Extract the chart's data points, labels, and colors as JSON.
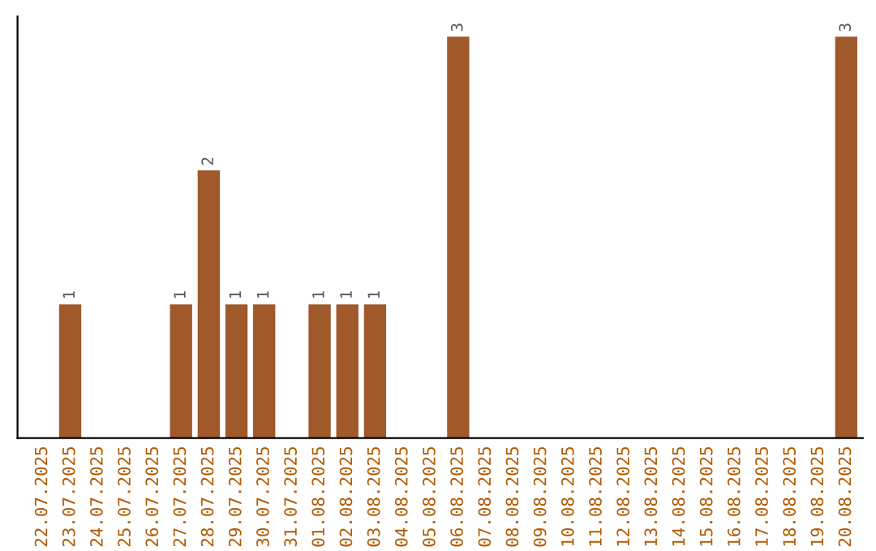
{
  "chart_data": {
    "type": "bar",
    "categories": [
      "22.07.2025",
      "23.07.2025",
      "24.07.2025",
      "25.07.2025",
      "26.07.2025",
      "27.07.2025",
      "28.07.2025",
      "29.07.2025",
      "30.07.2025",
      "31.07.2025",
      "01.08.2025",
      "02.08.2025",
      "03.08.2025",
      "04.08.2025",
      "05.08.2025",
      "06.08.2025",
      "07.08.2025",
      "08.08.2025",
      "09.08.2025",
      "10.08.2025",
      "11.08.2025",
      "12.08.2025",
      "13.08.2025",
      "14.08.2025",
      "15.08.2025",
      "16.08.2025",
      "17.08.2025",
      "18.08.2025",
      "19.08.2025",
      "20.08.2025"
    ],
    "values": [
      0,
      1,
      0,
      0,
      0,
      1,
      2,
      1,
      1,
      0,
      1,
      1,
      1,
      0,
      0,
      3,
      0,
      0,
      0,
      0,
      0,
      0,
      0,
      0,
      0,
      0,
      0,
      0,
      0,
      3
    ],
    "value_labels": [
      null,
      "1",
      null,
      null,
      null,
      "1",
      "2",
      "1",
      "1",
      null,
      "1",
      "1",
      "1",
      null,
      null,
      "3",
      null,
      null,
      null,
      null,
      null,
      null,
      null,
      null,
      null,
      null,
      null,
      null,
      null,
      "3"
    ],
    "color": "#a0592b",
    "tick_labels": "x",
    "grid": false,
    "legend": false
  }
}
